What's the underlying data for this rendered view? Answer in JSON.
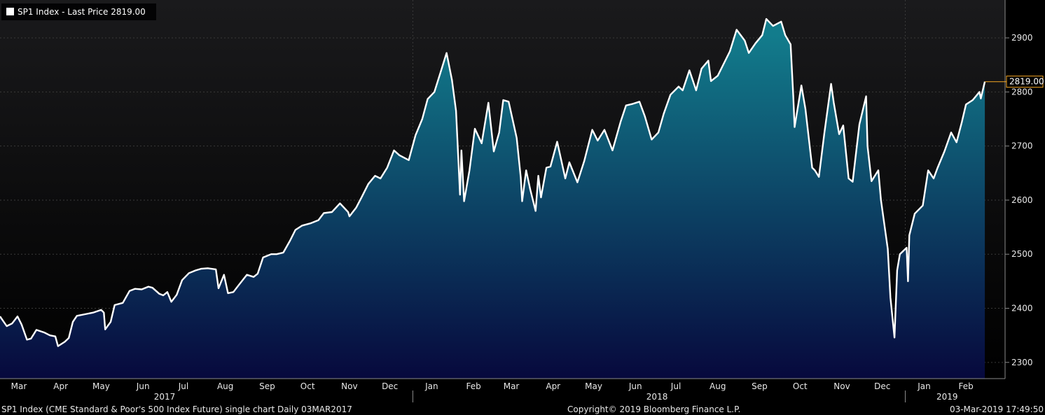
{
  "chart_data": {
    "type": "area",
    "title": "SP1 Index - Last Price 2819.00",
    "series_name": "SP1 Index - Last Price",
    "last_value": 2819.0,
    "last_value_label": "2819.00",
    "ylim": [
      2270,
      2970
    ],
    "yticks": [
      2300,
      2400,
      2500,
      2600,
      2700,
      2800,
      2900
    ],
    "ytick_labels": [
      "2300",
      "2400",
      "2500",
      "2600",
      "2700",
      "2800",
      "2900"
    ],
    "xlim": [
      "2017-03-01",
      "2019-03-03"
    ],
    "x_month_ticks": [
      {
        "date": "2017-03-15",
        "label": "Mar"
      },
      {
        "date": "2017-04-15",
        "label": "Apr"
      },
      {
        "date": "2017-05-15",
        "label": "May"
      },
      {
        "date": "2017-06-15",
        "label": "Jun"
      },
      {
        "date": "2017-07-15",
        "label": "Jul"
      },
      {
        "date": "2017-08-15",
        "label": "Aug"
      },
      {
        "date": "2017-09-15",
        "label": "Sep"
      },
      {
        "date": "2017-10-15",
        "label": "Oct"
      },
      {
        "date": "2017-11-15",
        "label": "Nov"
      },
      {
        "date": "2017-12-15",
        "label": "Dec"
      },
      {
        "date": "2018-01-15",
        "label": "Jan"
      },
      {
        "date": "2018-02-15",
        "label": "Feb"
      },
      {
        "date": "2018-03-15",
        "label": "Mar"
      },
      {
        "date": "2018-04-15",
        "label": "Apr"
      },
      {
        "date": "2018-05-15",
        "label": "May"
      },
      {
        "date": "2018-06-15",
        "label": "Jun"
      },
      {
        "date": "2018-07-15",
        "label": "Jul"
      },
      {
        "date": "2018-08-15",
        "label": "Aug"
      },
      {
        "date": "2018-09-15",
        "label": "Sep"
      },
      {
        "date": "2018-10-15",
        "label": "Oct"
      },
      {
        "date": "2018-11-15",
        "label": "Nov"
      },
      {
        "date": "2018-12-15",
        "label": "Dec"
      },
      {
        "date": "2019-01-15",
        "label": "Jan"
      },
      {
        "date": "2019-02-15",
        "label": "Feb"
      }
    ],
    "x_year_ticks": [
      {
        "date": "2017-07-01",
        "label": "2017"
      },
      {
        "date": "2018-07-01",
        "label": "2018"
      },
      {
        "date": "2019-02-01",
        "label": "2019"
      }
    ],
    "grid": true,
    "points": [
      {
        "x": "2017-03-01",
        "y": 2385
      },
      {
        "x": "2017-03-06",
        "y": 2367
      },
      {
        "x": "2017-03-10",
        "y": 2372
      },
      {
        "x": "2017-03-14",
        "y": 2385
      },
      {
        "x": "2017-03-17",
        "y": 2370
      },
      {
        "x": "2017-03-21",
        "y": 2342
      },
      {
        "x": "2017-03-24",
        "y": 2344
      },
      {
        "x": "2017-03-28",
        "y": 2360
      },
      {
        "x": "2017-04-03",
        "y": 2355
      },
      {
        "x": "2017-04-07",
        "y": 2350
      },
      {
        "x": "2017-04-11",
        "y": 2348
      },
      {
        "x": "2017-04-13",
        "y": 2330
      },
      {
        "x": "2017-04-18",
        "y": 2338
      },
      {
        "x": "2017-04-21",
        "y": 2345
      },
      {
        "x": "2017-04-24",
        "y": 2375
      },
      {
        "x": "2017-04-27",
        "y": 2386
      },
      {
        "x": "2017-05-03",
        "y": 2389
      },
      {
        "x": "2017-05-09",
        "y": 2392
      },
      {
        "x": "2017-05-15",
        "y": 2397
      },
      {
        "x": "2017-05-17",
        "y": 2392
      },
      {
        "x": "2017-05-18",
        "y": 2361
      },
      {
        "x": "2017-05-22",
        "y": 2375
      },
      {
        "x": "2017-05-25",
        "y": 2406
      },
      {
        "x": "2017-05-31",
        "y": 2410
      },
      {
        "x": "2017-06-05",
        "y": 2432
      },
      {
        "x": "2017-06-09",
        "y": 2436
      },
      {
        "x": "2017-06-14",
        "y": 2435
      },
      {
        "x": "2017-06-19",
        "y": 2440
      },
      {
        "x": "2017-06-22",
        "y": 2438
      },
      {
        "x": "2017-06-27",
        "y": 2427
      },
      {
        "x": "2017-06-30",
        "y": 2424
      },
      {
        "x": "2017-07-03",
        "y": 2430
      },
      {
        "x": "2017-07-06",
        "y": 2412
      },
      {
        "x": "2017-07-10",
        "y": 2425
      },
      {
        "x": "2017-07-14",
        "y": 2452
      },
      {
        "x": "2017-07-19",
        "y": 2465
      },
      {
        "x": "2017-07-24",
        "y": 2470
      },
      {
        "x": "2017-07-28",
        "y": 2473
      },
      {
        "x": "2017-08-02",
        "y": 2474
      },
      {
        "x": "2017-08-08",
        "y": 2472
      },
      {
        "x": "2017-08-10",
        "y": 2437
      },
      {
        "x": "2017-08-14",
        "y": 2462
      },
      {
        "x": "2017-08-17",
        "y": 2428
      },
      {
        "x": "2017-08-21",
        "y": 2430
      },
      {
        "x": "2017-08-25",
        "y": 2443
      },
      {
        "x": "2017-08-31",
        "y": 2462
      },
      {
        "x": "2017-09-05",
        "y": 2458
      },
      {
        "x": "2017-09-08",
        "y": 2464
      },
      {
        "x": "2017-09-12",
        "y": 2494
      },
      {
        "x": "2017-09-18",
        "y": 2500
      },
      {
        "x": "2017-09-22",
        "y": 2500
      },
      {
        "x": "2017-09-27",
        "y": 2503
      },
      {
        "x": "2017-10-02",
        "y": 2525
      },
      {
        "x": "2017-10-06",
        "y": 2545
      },
      {
        "x": "2017-10-11",
        "y": 2553
      },
      {
        "x": "2017-10-17",
        "y": 2557
      },
      {
        "x": "2017-10-23",
        "y": 2563
      },
      {
        "x": "2017-10-27",
        "y": 2576
      },
      {
        "x": "2017-11-02",
        "y": 2578
      },
      {
        "x": "2017-11-08",
        "y": 2594
      },
      {
        "x": "2017-11-14",
        "y": 2578
      },
      {
        "x": "2017-11-15",
        "y": 2570
      },
      {
        "x": "2017-11-20",
        "y": 2586
      },
      {
        "x": "2017-11-24",
        "y": 2605
      },
      {
        "x": "2017-11-29",
        "y": 2630
      },
      {
        "x": "2017-12-04",
        "y": 2645
      },
      {
        "x": "2017-12-08",
        "y": 2640
      },
      {
        "x": "2017-12-13",
        "y": 2660
      },
      {
        "x": "2017-12-18",
        "y": 2692
      },
      {
        "x": "2017-12-22",
        "y": 2683
      },
      {
        "x": "2017-12-29",
        "y": 2674
      },
      {
        "x": "2018-01-03",
        "y": 2720
      },
      {
        "x": "2018-01-08",
        "y": 2750
      },
      {
        "x": "2018-01-12",
        "y": 2787
      },
      {
        "x": "2018-01-17",
        "y": 2800
      },
      {
        "x": "2018-01-22",
        "y": 2840
      },
      {
        "x": "2018-01-26",
        "y": 2872
      },
      {
        "x": "2018-01-30",
        "y": 2822
      },
      {
        "x": "2018-02-02",
        "y": 2765
      },
      {
        "x": "2018-02-05",
        "y": 2610
      },
      {
        "x": "2018-02-06",
        "y": 2692
      },
      {
        "x": "2018-02-08",
        "y": 2598
      },
      {
        "x": "2018-02-12",
        "y": 2655
      },
      {
        "x": "2018-02-16",
        "y": 2732
      },
      {
        "x": "2018-02-21",
        "y": 2705
      },
      {
        "x": "2018-02-26",
        "y": 2780
      },
      {
        "x": "2018-03-02",
        "y": 2690
      },
      {
        "x": "2018-03-06",
        "y": 2725
      },
      {
        "x": "2018-03-09",
        "y": 2785
      },
      {
        "x": "2018-03-13",
        "y": 2782
      },
      {
        "x": "2018-03-19",
        "y": 2715
      },
      {
        "x": "2018-03-22",
        "y": 2642
      },
      {
        "x": "2018-03-23",
        "y": 2598
      },
      {
        "x": "2018-03-26",
        "y": 2655
      },
      {
        "x": "2018-03-29",
        "y": 2620
      },
      {
        "x": "2018-04-02",
        "y": 2580
      },
      {
        "x": "2018-04-04",
        "y": 2645
      },
      {
        "x": "2018-04-06",
        "y": 2605
      },
      {
        "x": "2018-04-10",
        "y": 2660
      },
      {
        "x": "2018-04-13",
        "y": 2662
      },
      {
        "x": "2018-04-18",
        "y": 2708
      },
      {
        "x": "2018-04-24",
        "y": 2640
      },
      {
        "x": "2018-04-27",
        "y": 2670
      },
      {
        "x": "2018-05-03",
        "y": 2633
      },
      {
        "x": "2018-05-08",
        "y": 2672
      },
      {
        "x": "2018-05-14",
        "y": 2730
      },
      {
        "x": "2018-05-18",
        "y": 2710
      },
      {
        "x": "2018-05-23",
        "y": 2730
      },
      {
        "x": "2018-05-29",
        "y": 2692
      },
      {
        "x": "2018-06-04",
        "y": 2745
      },
      {
        "x": "2018-06-08",
        "y": 2775
      },
      {
        "x": "2018-06-13",
        "y": 2778
      },
      {
        "x": "2018-06-18",
        "y": 2782
      },
      {
        "x": "2018-06-22",
        "y": 2755
      },
      {
        "x": "2018-06-27",
        "y": 2712
      },
      {
        "x": "2018-07-02",
        "y": 2725
      },
      {
        "x": "2018-07-06",
        "y": 2760
      },
      {
        "x": "2018-07-11",
        "y": 2795
      },
      {
        "x": "2018-07-17",
        "y": 2810
      },
      {
        "x": "2018-07-20",
        "y": 2803
      },
      {
        "x": "2018-07-25",
        "y": 2840
      },
      {
        "x": "2018-07-30",
        "y": 2803
      },
      {
        "x": "2018-08-03",
        "y": 2843
      },
      {
        "x": "2018-08-08",
        "y": 2858
      },
      {
        "x": "2018-08-10",
        "y": 2820
      },
      {
        "x": "2018-08-15",
        "y": 2830
      },
      {
        "x": "2018-08-20",
        "y": 2855
      },
      {
        "x": "2018-08-24",
        "y": 2875
      },
      {
        "x": "2018-08-29",
        "y": 2915
      },
      {
        "x": "2018-09-04",
        "y": 2895
      },
      {
        "x": "2018-09-07",
        "y": 2872
      },
      {
        "x": "2018-09-12",
        "y": 2890
      },
      {
        "x": "2018-09-17",
        "y": 2905
      },
      {
        "x": "2018-09-20",
        "y": 2935
      },
      {
        "x": "2018-09-25",
        "y": 2922
      },
      {
        "x": "2018-10-01",
        "y": 2930
      },
      {
        "x": "2018-10-04",
        "y": 2905
      },
      {
        "x": "2018-10-08",
        "y": 2888
      },
      {
        "x": "2018-10-10",
        "y": 2792
      },
      {
        "x": "2018-10-11",
        "y": 2735
      },
      {
        "x": "2018-10-16",
        "y": 2812
      },
      {
        "x": "2018-10-19",
        "y": 2768
      },
      {
        "x": "2018-10-24",
        "y": 2660
      },
      {
        "x": "2018-10-26",
        "y": 2655
      },
      {
        "x": "2018-10-29",
        "y": 2643
      },
      {
        "x": "2018-11-02",
        "y": 2723
      },
      {
        "x": "2018-11-07",
        "y": 2815
      },
      {
        "x": "2018-11-09",
        "y": 2780
      },
      {
        "x": "2018-11-13",
        "y": 2722
      },
      {
        "x": "2018-11-16",
        "y": 2738
      },
      {
        "x": "2018-11-20",
        "y": 2640
      },
      {
        "x": "2018-11-23",
        "y": 2634
      },
      {
        "x": "2018-11-28",
        "y": 2740
      },
      {
        "x": "2018-12-03",
        "y": 2792
      },
      {
        "x": "2018-12-04",
        "y": 2700
      },
      {
        "x": "2018-12-07",
        "y": 2635
      },
      {
        "x": "2018-12-12",
        "y": 2655
      },
      {
        "x": "2018-12-14",
        "y": 2600
      },
      {
        "x": "2018-12-19",
        "y": 2510
      },
      {
        "x": "2018-12-21",
        "y": 2420
      },
      {
        "x": "2018-12-24",
        "y": 2346
      },
      {
        "x": "2018-12-26",
        "y": 2470
      },
      {
        "x": "2018-12-28",
        "y": 2500
      },
      {
        "x": "2019-01-02",
        "y": 2512
      },
      {
        "x": "2019-01-03",
        "y": 2450
      },
      {
        "x": "2019-01-04",
        "y": 2535
      },
      {
        "x": "2019-01-08",
        "y": 2575
      },
      {
        "x": "2019-01-14",
        "y": 2590
      },
      {
        "x": "2019-01-18",
        "y": 2655
      },
      {
        "x": "2019-01-22",
        "y": 2640
      },
      {
        "x": "2019-01-25",
        "y": 2660
      },
      {
        "x": "2019-01-30",
        "y": 2690
      },
      {
        "x": "2019-02-04",
        "y": 2725
      },
      {
        "x": "2019-02-08",
        "y": 2707
      },
      {
        "x": "2019-02-12",
        "y": 2745
      },
      {
        "x": "2019-02-15",
        "y": 2777
      },
      {
        "x": "2019-02-20",
        "y": 2785
      },
      {
        "x": "2019-02-25",
        "y": 2800
      },
      {
        "x": "2019-02-26",
        "y": 2788
      },
      {
        "x": "2019-03-01",
        "y": 2819
      }
    ]
  },
  "footer": {
    "left": "SP1 Index (CME Standard & Poor's 500 Index Future) single chart  Daily 03MAR2017",
    "center": "Copyright© 2019 Bloomberg Finance L.P.",
    "right": "03-Mar-2019 17:49:50"
  },
  "colors": {
    "background": "#000000",
    "plot_top": "#1a1a1c",
    "plot_bottom": "#000000",
    "line": "#ffffff",
    "area_top": "#127c8c",
    "area_bottom": "#07093d",
    "grid": "#3a3a3a",
    "last_marker": "#f5a623",
    "axis_text": "#e8e8e8"
  }
}
